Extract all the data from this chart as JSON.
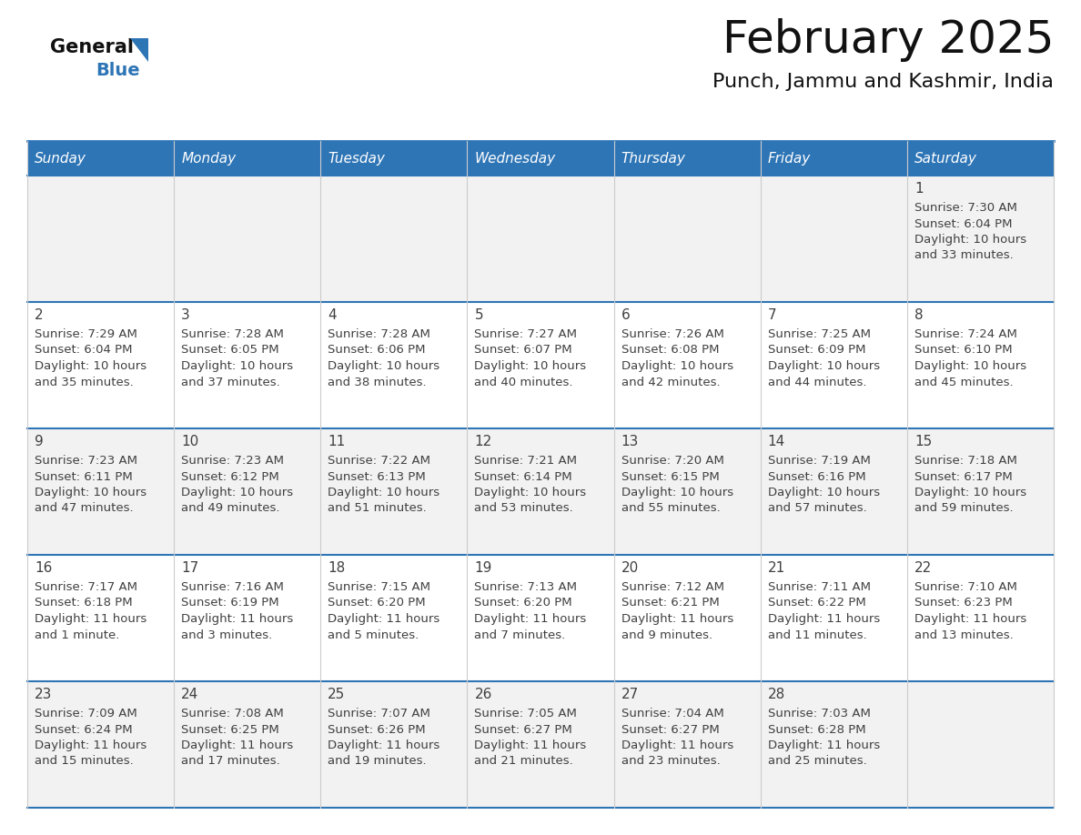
{
  "title": "February 2025",
  "subtitle": "Punch, Jammu and Kashmir, India",
  "header_bg": "#2E75B6",
  "header_text": "#FFFFFF",
  "cell_bg_odd": "#F2F2F2",
  "cell_bg_even": "#FFFFFF",
  "border_color": "#2E75B6",
  "text_color": "#404040",
  "day_num_color": "#404040",
  "day_headers": [
    "Sunday",
    "Monday",
    "Tuesday",
    "Wednesday",
    "Thursday",
    "Friday",
    "Saturday"
  ],
  "days": [
    {
      "day": 1,
      "col": 6,
      "row": 0,
      "sunrise": "7:30 AM",
      "sunset": "6:04 PM",
      "daylight_line1": "Daylight: 10 hours",
      "daylight_line2": "and 33 minutes."
    },
    {
      "day": 2,
      "col": 0,
      "row": 1,
      "sunrise": "7:29 AM",
      "sunset": "6:04 PM",
      "daylight_line1": "Daylight: 10 hours",
      "daylight_line2": "and 35 minutes."
    },
    {
      "day": 3,
      "col": 1,
      "row": 1,
      "sunrise": "7:28 AM",
      "sunset": "6:05 PM",
      "daylight_line1": "Daylight: 10 hours",
      "daylight_line2": "and 37 minutes."
    },
    {
      "day": 4,
      "col": 2,
      "row": 1,
      "sunrise": "7:28 AM",
      "sunset": "6:06 PM",
      "daylight_line1": "Daylight: 10 hours",
      "daylight_line2": "and 38 minutes."
    },
    {
      "day": 5,
      "col": 3,
      "row": 1,
      "sunrise": "7:27 AM",
      "sunset": "6:07 PM",
      "daylight_line1": "Daylight: 10 hours",
      "daylight_line2": "and 40 minutes."
    },
    {
      "day": 6,
      "col": 4,
      "row": 1,
      "sunrise": "7:26 AM",
      "sunset": "6:08 PM",
      "daylight_line1": "Daylight: 10 hours",
      "daylight_line2": "and 42 minutes."
    },
    {
      "day": 7,
      "col": 5,
      "row": 1,
      "sunrise": "7:25 AM",
      "sunset": "6:09 PM",
      "daylight_line1": "Daylight: 10 hours",
      "daylight_line2": "and 44 minutes."
    },
    {
      "day": 8,
      "col": 6,
      "row": 1,
      "sunrise": "7:24 AM",
      "sunset": "6:10 PM",
      "daylight_line1": "Daylight: 10 hours",
      "daylight_line2": "and 45 minutes."
    },
    {
      "day": 9,
      "col": 0,
      "row": 2,
      "sunrise": "7:23 AM",
      "sunset": "6:11 PM",
      "daylight_line1": "Daylight: 10 hours",
      "daylight_line2": "and 47 minutes."
    },
    {
      "day": 10,
      "col": 1,
      "row": 2,
      "sunrise": "7:23 AM",
      "sunset": "6:12 PM",
      "daylight_line1": "Daylight: 10 hours",
      "daylight_line2": "and 49 minutes."
    },
    {
      "day": 11,
      "col": 2,
      "row": 2,
      "sunrise": "7:22 AM",
      "sunset": "6:13 PM",
      "daylight_line1": "Daylight: 10 hours",
      "daylight_line2": "and 51 minutes."
    },
    {
      "day": 12,
      "col": 3,
      "row": 2,
      "sunrise": "7:21 AM",
      "sunset": "6:14 PM",
      "daylight_line1": "Daylight: 10 hours",
      "daylight_line2": "and 53 minutes."
    },
    {
      "day": 13,
      "col": 4,
      "row": 2,
      "sunrise": "7:20 AM",
      "sunset": "6:15 PM",
      "daylight_line1": "Daylight: 10 hours",
      "daylight_line2": "and 55 minutes."
    },
    {
      "day": 14,
      "col": 5,
      "row": 2,
      "sunrise": "7:19 AM",
      "sunset": "6:16 PM",
      "daylight_line1": "Daylight: 10 hours",
      "daylight_line2": "and 57 minutes."
    },
    {
      "day": 15,
      "col": 6,
      "row": 2,
      "sunrise": "7:18 AM",
      "sunset": "6:17 PM",
      "daylight_line1": "Daylight: 10 hours",
      "daylight_line2": "and 59 minutes."
    },
    {
      "day": 16,
      "col": 0,
      "row": 3,
      "sunrise": "7:17 AM",
      "sunset": "6:18 PM",
      "daylight_line1": "Daylight: 11 hours",
      "daylight_line2": "and 1 minute."
    },
    {
      "day": 17,
      "col": 1,
      "row": 3,
      "sunrise": "7:16 AM",
      "sunset": "6:19 PM",
      "daylight_line1": "Daylight: 11 hours",
      "daylight_line2": "and 3 minutes."
    },
    {
      "day": 18,
      "col": 2,
      "row": 3,
      "sunrise": "7:15 AM",
      "sunset": "6:20 PM",
      "daylight_line1": "Daylight: 11 hours",
      "daylight_line2": "and 5 minutes."
    },
    {
      "day": 19,
      "col": 3,
      "row": 3,
      "sunrise": "7:13 AM",
      "sunset": "6:20 PM",
      "daylight_line1": "Daylight: 11 hours",
      "daylight_line2": "and 7 minutes."
    },
    {
      "day": 20,
      "col": 4,
      "row": 3,
      "sunrise": "7:12 AM",
      "sunset": "6:21 PM",
      "daylight_line1": "Daylight: 11 hours",
      "daylight_line2": "and 9 minutes."
    },
    {
      "day": 21,
      "col": 5,
      "row": 3,
      "sunrise": "7:11 AM",
      "sunset": "6:22 PM",
      "daylight_line1": "Daylight: 11 hours",
      "daylight_line2": "and 11 minutes."
    },
    {
      "day": 22,
      "col": 6,
      "row": 3,
      "sunrise": "7:10 AM",
      "sunset": "6:23 PM",
      "daylight_line1": "Daylight: 11 hours",
      "daylight_line2": "and 13 minutes."
    },
    {
      "day": 23,
      "col": 0,
      "row": 4,
      "sunrise": "7:09 AM",
      "sunset": "6:24 PM",
      "daylight_line1": "Daylight: 11 hours",
      "daylight_line2": "and 15 minutes."
    },
    {
      "day": 24,
      "col": 1,
      "row": 4,
      "sunrise": "7:08 AM",
      "sunset": "6:25 PM",
      "daylight_line1": "Daylight: 11 hours",
      "daylight_line2": "and 17 minutes."
    },
    {
      "day": 25,
      "col": 2,
      "row": 4,
      "sunrise": "7:07 AM",
      "sunset": "6:26 PM",
      "daylight_line1": "Daylight: 11 hours",
      "daylight_line2": "and 19 minutes."
    },
    {
      "day": 26,
      "col": 3,
      "row": 4,
      "sunrise": "7:05 AM",
      "sunset": "6:27 PM",
      "daylight_line1": "Daylight: 11 hours",
      "daylight_line2": "and 21 minutes."
    },
    {
      "day": 27,
      "col": 4,
      "row": 4,
      "sunrise": "7:04 AM",
      "sunset": "6:27 PM",
      "daylight_line1": "Daylight: 11 hours",
      "daylight_line2": "and 23 minutes."
    },
    {
      "day": 28,
      "col": 5,
      "row": 4,
      "sunrise": "7:03 AM",
      "sunset": "6:28 PM",
      "daylight_line1": "Daylight: 11 hours",
      "daylight_line2": "and 25 minutes."
    }
  ],
  "logo_general_color": "#111111",
  "logo_blue_color": "#2E75B6",
  "num_rows": 5,
  "num_cols": 7,
  "fig_width": 11.88,
  "fig_height": 9.18,
  "dpi": 100
}
